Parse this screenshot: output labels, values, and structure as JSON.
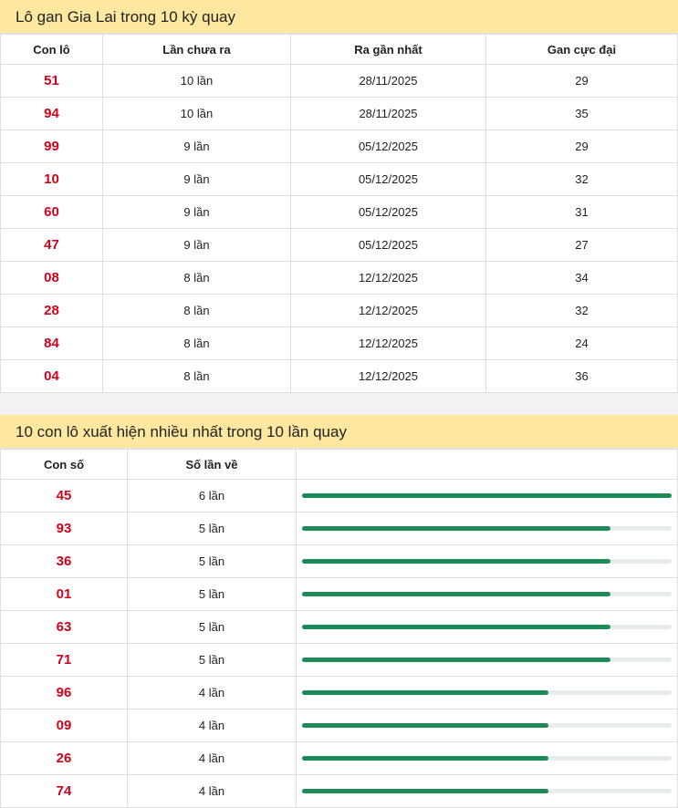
{
  "gan": {
    "title": "Lô gan Gia Lai trong 10 kỳ quay",
    "headers": [
      "Con lô",
      "Lần chưa ra",
      "Ra gần nhất",
      "Gan cực đại"
    ],
    "rows": [
      [
        "51",
        "10 lần",
        "28/11/2025",
        "29"
      ],
      [
        "94",
        "10 lần",
        "28/11/2025",
        "35"
      ],
      [
        "99",
        "9 lần",
        "05/12/2025",
        "29"
      ],
      [
        "10",
        "9 lần",
        "05/12/2025",
        "32"
      ],
      [
        "60",
        "9 lần",
        "05/12/2025",
        "31"
      ],
      [
        "47",
        "9 lần",
        "05/12/2025",
        "27"
      ],
      [
        "08",
        "8 lần",
        "12/12/2025",
        "34"
      ],
      [
        "28",
        "8 lần",
        "12/12/2025",
        "32"
      ],
      [
        "84",
        "8 lần",
        "12/12/2025",
        "24"
      ],
      [
        "04",
        "8 lần",
        "12/12/2025",
        "36"
      ]
    ]
  },
  "freq": {
    "title": "10 con lô xuất hiện nhiều nhất trong 10 lần quay",
    "headers": [
      "Con số",
      "Số lần về",
      ""
    ],
    "max": 6,
    "rows": [
      {
        "num": "45",
        "label": "6 lần",
        "count": 6
      },
      {
        "num": "93",
        "label": "5 lần",
        "count": 5
      },
      {
        "num": "36",
        "label": "5 lần",
        "count": 5
      },
      {
        "num": "01",
        "label": "5 lần",
        "count": 5
      },
      {
        "num": "63",
        "label": "5 lần",
        "count": 5
      },
      {
        "num": "71",
        "label": "5 lần",
        "count": 5
      },
      {
        "num": "96",
        "label": "4 lần",
        "count": 4
      },
      {
        "num": "09",
        "label": "4 lần",
        "count": 4
      },
      {
        "num": "26",
        "label": "4 lần",
        "count": 4
      },
      {
        "num": "74",
        "label": "4 lần",
        "count": 4
      }
    ]
  },
  "colors": {
    "accent_bar": "#1e8a57",
    "number": "#d0021b",
    "header_bg": "#fee79f"
  }
}
